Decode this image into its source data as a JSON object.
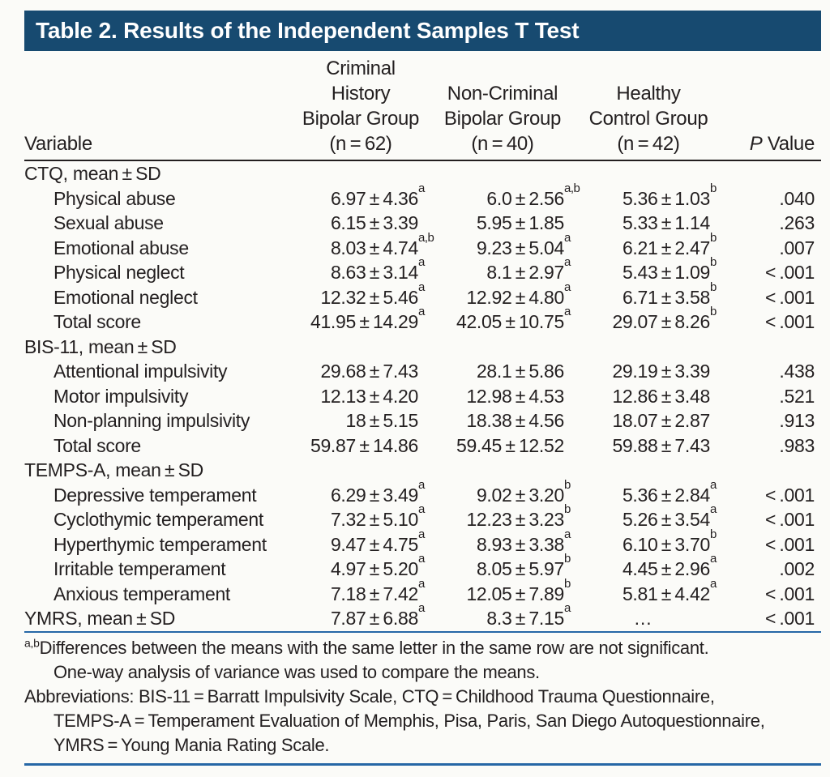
{
  "title": "Table 2. Results of the Independent Samples T Test",
  "header": {
    "variable_label": "Variable",
    "groups": {
      "g1": "Criminal\nHistory\nBipolar Group\n(n = 62)",
      "g2": "Non-Criminal\nBipolar Group\n(n = 40)",
      "g3": "Healthy\nControl Group\n(n = 42)"
    },
    "p_value": {
      "italic": "P",
      "rest": " Value"
    }
  },
  "table": {
    "rows": [
      {
        "label": "CTQ, mean ± SD",
        "indent": 0,
        "c1": null,
        "c2": null,
        "c3": null,
        "p": ""
      },
      {
        "label": "Physical abuse",
        "indent": 1,
        "c1": {
          "v": "6.97 ± 4.36",
          "s": "a"
        },
        "c2": {
          "v": "6.0 ± 2.56",
          "s": "a,b"
        },
        "c3": {
          "v": "5.36 ± 1.03",
          "s": "b"
        },
        "p": ".040"
      },
      {
        "label": "Sexual abuse",
        "indent": 1,
        "c1": {
          "v": "6.15 ± 3.39",
          "s": ""
        },
        "c2": {
          "v": "5.95 ± 1.85",
          "s": ""
        },
        "c3": {
          "v": "5.33 ± 1.14",
          "s": ""
        },
        "p": ".263"
      },
      {
        "label": "Emotional abuse",
        "indent": 1,
        "c1": {
          "v": "8.03 ± 4.74",
          "s": "a,b"
        },
        "c2": {
          "v": "9.23 ± 5.04",
          "s": "a"
        },
        "c3": {
          "v": "6.21 ± 2.47",
          "s": "b"
        },
        "p": ".007"
      },
      {
        "label": "Physical neglect",
        "indent": 1,
        "c1": {
          "v": "8.63 ± 3.14",
          "s": "a"
        },
        "c2": {
          "v": "8.1 ± 2.97",
          "s": "a"
        },
        "c3": {
          "v": "5.43 ± 1.09",
          "s": "b"
        },
        "p": "< .001"
      },
      {
        "label": "Emotional neglect",
        "indent": 1,
        "c1": {
          "v": "12.32 ± 5.46",
          "s": "a"
        },
        "c2": {
          "v": "12.92 ± 4.80",
          "s": "a"
        },
        "c3": {
          "v": "6.71 ± 3.58",
          "s": "b"
        },
        "p": "< .001"
      },
      {
        "label": "Total score",
        "indent": 1,
        "c1": {
          "v": "41.95 ± 14.29",
          "s": "a"
        },
        "c2": {
          "v": "42.05 ± 10.75",
          "s": "a"
        },
        "c3": {
          "v": "29.07 ± 8.26",
          "s": "b"
        },
        "p": "< .001"
      },
      {
        "label": "BIS-11, mean ± SD",
        "indent": 0,
        "c1": null,
        "c2": null,
        "c3": null,
        "p": ""
      },
      {
        "label": "Attentional impulsivity",
        "indent": 1,
        "c1": {
          "v": "29.68 ± 7.43",
          "s": ""
        },
        "c2": {
          "v": "28.1 ± 5.86",
          "s": ""
        },
        "c3": {
          "v": "29.19 ± 3.39",
          "s": ""
        },
        "p": ".438"
      },
      {
        "label": "Motor impulsivity",
        "indent": 1,
        "c1": {
          "v": "12.13 ± 4.20",
          "s": ""
        },
        "c2": {
          "v": "12.98 ± 4.53",
          "s": ""
        },
        "c3": {
          "v": "12.86 ± 3.48",
          "s": ""
        },
        "p": ".521"
      },
      {
        "label": "Non-planning impulsivity",
        "indent": 1,
        "c1": {
          "v": "18 ± 5.15",
          "s": ""
        },
        "c2": {
          "v": "18.38 ± 4.56",
          "s": ""
        },
        "c3": {
          "v": "18.07 ± 2.87",
          "s": ""
        },
        "p": ".913"
      },
      {
        "label": "Total score",
        "indent": 1,
        "c1": {
          "v": "59.87 ± 14.86",
          "s": ""
        },
        "c2": {
          "v": "59.45 ± 12.52",
          "s": ""
        },
        "c3": {
          "v": "59.88 ± 7.43",
          "s": ""
        },
        "p": ".983"
      },
      {
        "label": "TEMPS-A, mean ± SD",
        "indent": 0,
        "c1": null,
        "c2": null,
        "c3": null,
        "p": ""
      },
      {
        "label": "Depressive temperament",
        "indent": 1,
        "c1": {
          "v": "6.29 ± 3.49",
          "s": "a"
        },
        "c2": {
          "v": "9.02 ± 3.20",
          "s": "b"
        },
        "c3": {
          "v": "5.36 ± 2.84",
          "s": "a"
        },
        "p": "< .001"
      },
      {
        "label": "Cyclothymic temperament",
        "indent": 1,
        "c1": {
          "v": "7.32 ± 5.10",
          "s": "a"
        },
        "c2": {
          "v": "12.23 ± 3.23",
          "s": "b"
        },
        "c3": {
          "v": "5.26 ± 3.54",
          "s": "a"
        },
        "p": "< .001"
      },
      {
        "label": "Hyperthymic temperament",
        "indent": 1,
        "c1": {
          "v": "9.47 ± 4.75",
          "s": "a"
        },
        "c2": {
          "v": "8.93 ± 3.38",
          "s": "a"
        },
        "c3": {
          "v": "6.10 ± 3.70",
          "s": "b"
        },
        "p": "< .001"
      },
      {
        "label": "Irritable temperament",
        "indent": 1,
        "c1": {
          "v": "4.97 ± 5.20",
          "s": "a"
        },
        "c2": {
          "v": "8.05 ± 5.97",
          "s": "b"
        },
        "c3": {
          "v": "4.45 ± 2.96",
          "s": "a"
        },
        "p": ".002"
      },
      {
        "label": "Anxious temperament",
        "indent": 1,
        "c1": {
          "v": "7.18 ± 7.42",
          "s": "a"
        },
        "c2": {
          "v": "12.05 ± 7.89",
          "s": "b"
        },
        "c3": {
          "v": "5.81 ± 4.42",
          "s": "a"
        },
        "p": "< .001"
      },
      {
        "label": "YMRS, mean ± SD",
        "indent": 0,
        "c1": {
          "v": "7.87 ± 6.88",
          "s": "a"
        },
        "c2": {
          "v": "8.3 ± 7.15",
          "s": "a"
        },
        "c3": {
          "v": "…",
          "s": ""
        },
        "p": "< .001"
      }
    ]
  },
  "footnotes": {
    "significance": {
      "marker": "a,b",
      "text": "Differences between the means with the same letter in the same row are not significant.\nOne-way analysis of variance was used to compare the means."
    },
    "abbreviations": {
      "text": "Abbreviations: BIS-11 = Barratt Impulsivity Scale, CTQ = Childhood Trauma Questionnaire,\nTEMPS-A = Temperament Evaluation of Memphis, Pisa, Paris, San Diego Autoquestionnaire,\nYMRS = Young Mania Rating Scale."
    }
  },
  "colors": {
    "header_bar": "#174A70",
    "rule_blue": "#2667A6",
    "rule_dark": "#231F20",
    "ink": "#231F20",
    "background": "#FBFBF8"
  }
}
